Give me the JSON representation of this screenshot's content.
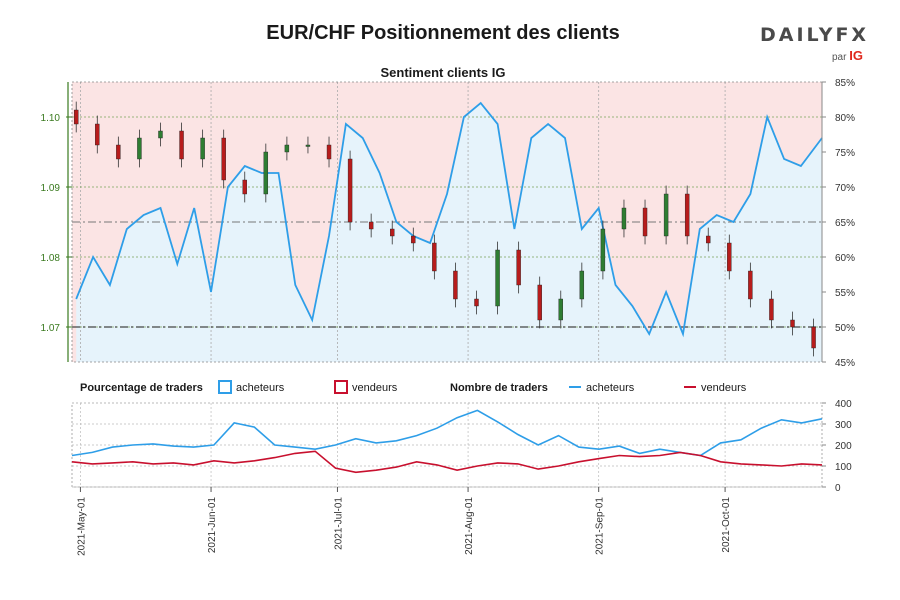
{
  "header": {
    "title": "EUR/CHF Positionnement des clients",
    "logo_text": "DAILYFX",
    "logo_sub_par": "par",
    "logo_sub_ig": "IG"
  },
  "colors": {
    "buyers": "#2e9ee8",
    "sellers": "#c8102e",
    "buyers_fill": "#e6f3fb",
    "sellers_fill": "#fbe4e4",
    "up_candle": "#2e7d32",
    "down_candle": "#b71c1c",
    "grid": "#7aa35a"
  },
  "chart_data": [
    {
      "type": "candlestick+area",
      "title": "Sentiment clients IG",
      "left_axis": {
        "ticks": [
          1.07,
          1.08,
          1.09,
          1.1
        ],
        "labels": [
          "1.07",
          "1.08",
          "1.09",
          "1.10"
        ],
        "ylim": [
          1.065,
          1.105
        ]
      },
      "right_axis": {
        "ticks": [
          45,
          50,
          55,
          60,
          65,
          70,
          75,
          80,
          85
        ],
        "labels": [
          "45%",
          "50%",
          "55%",
          "60%",
          "65%",
          "70%",
          "75%",
          "80%",
          "85%"
        ],
        "ylim": [
          45,
          85
        ]
      },
      "reference_lines": {
        "price": 1.07,
        "percent": 65
      },
      "net_long_pct": {
        "x": [
          "2021-04-30",
          "2021-05-04",
          "2021-05-08",
          "2021-05-12",
          "2021-05-16",
          "2021-05-20",
          "2021-05-24",
          "2021-05-28",
          "2021-06-01",
          "2021-06-05",
          "2021-06-09",
          "2021-06-13",
          "2021-06-17",
          "2021-06-21",
          "2021-06-25",
          "2021-06-29",
          "2021-07-03",
          "2021-07-07",
          "2021-07-11",
          "2021-07-15",
          "2021-07-19",
          "2021-07-23",
          "2021-07-27",
          "2021-07-31",
          "2021-08-04",
          "2021-08-08",
          "2021-08-12",
          "2021-08-16",
          "2021-08-20",
          "2021-08-24",
          "2021-08-28",
          "2021-09-01",
          "2021-09-05",
          "2021-09-09",
          "2021-09-13",
          "2021-09-17",
          "2021-09-21",
          "2021-09-25",
          "2021-09-29",
          "2021-10-03",
          "2021-10-07",
          "2021-10-11",
          "2021-10-15",
          "2021-10-19",
          "2021-10-24"
        ],
        "values": [
          54,
          60,
          56,
          64,
          66,
          67,
          59,
          67,
          55,
          70,
          73,
          72,
          72,
          56,
          51,
          63,
          79,
          77,
          72,
          65,
          63,
          62,
          69,
          80,
          82,
          79,
          64,
          77,
          79,
          77,
          64,
          67,
          56,
          53,
          49,
          55,
          49,
          64,
          66,
          65,
          69,
          80,
          74,
          73,
          77
        ]
      },
      "candles": {
        "x": [
          "2021-04-30",
          "2021-05-05",
          "2021-05-10",
          "2021-05-15",
          "2021-05-20",
          "2021-05-25",
          "2021-05-30",
          "2021-06-04",
          "2021-06-09",
          "2021-06-14",
          "2021-06-19",
          "2021-06-24",
          "2021-06-29",
          "2021-07-04",
          "2021-07-09",
          "2021-07-14",
          "2021-07-19",
          "2021-07-24",
          "2021-07-29",
          "2021-08-03",
          "2021-08-08",
          "2021-08-13",
          "2021-08-18",
          "2021-08-23",
          "2021-08-28",
          "2021-09-02",
          "2021-09-07",
          "2021-09-12",
          "2021-09-17",
          "2021-09-22",
          "2021-09-27",
          "2021-10-02",
          "2021-10-07",
          "2021-10-12",
          "2021-10-17",
          "2021-10-22"
        ],
        "close": [
          1.099,
          1.096,
          1.094,
          1.097,
          1.098,
          1.094,
          1.097,
          1.091,
          1.089,
          1.095,
          1.096,
          1.096,
          1.094,
          1.085,
          1.084,
          1.083,
          1.082,
          1.078,
          1.074,
          1.073,
          1.081,
          1.076,
          1.071,
          1.074,
          1.078,
          1.084,
          1.087,
          1.083,
          1.089,
          1.083,
          1.082,
          1.078,
          1.074,
          1.071,
          1.07,
          1.067
        ]
      }
    },
    {
      "type": "line",
      "ylim": [
        0,
        400
      ],
      "y_ticks": [
        0,
        100,
        200,
        300,
        400
      ],
      "x_ticks": [
        "2021-May-01",
        "2021-Jun-01",
        "2021-Jul-01",
        "2021-Aug-01",
        "2021-Sep-01",
        "2021-Oct-01"
      ],
      "series": [
        {
          "name": "acheteurs",
          "values": [
            150,
            165,
            190,
            200,
            205,
            195,
            190,
            200,
            305,
            285,
            200,
            190,
            180,
            200,
            230,
            210,
            220,
            245,
            280,
            330,
            365,
            310,
            250,
            200,
            245,
            190,
            180,
            195,
            160,
            180,
            165,
            150,
            210,
            225,
            280,
            320,
            305,
            325
          ]
        },
        {
          "name": "vendeurs",
          "values": [
            120,
            110,
            115,
            120,
            110,
            115,
            105,
            125,
            115,
            125,
            140,
            160,
            170,
            90,
            70,
            80,
            95,
            120,
            105,
            80,
            100,
            115,
            110,
            85,
            100,
            120,
            135,
            150,
            145,
            150,
            165,
            150,
            120,
            110,
            105,
            100,
            110,
            105
          ]
        }
      ]
    }
  ],
  "legend": {
    "pct_title": "Pourcentage de traders",
    "pct_buyers": "acheteurs",
    "pct_sellers": "vendeurs",
    "count_title": "Nombre de traders",
    "count_buyers": "acheteurs",
    "count_sellers": "vendeurs"
  }
}
